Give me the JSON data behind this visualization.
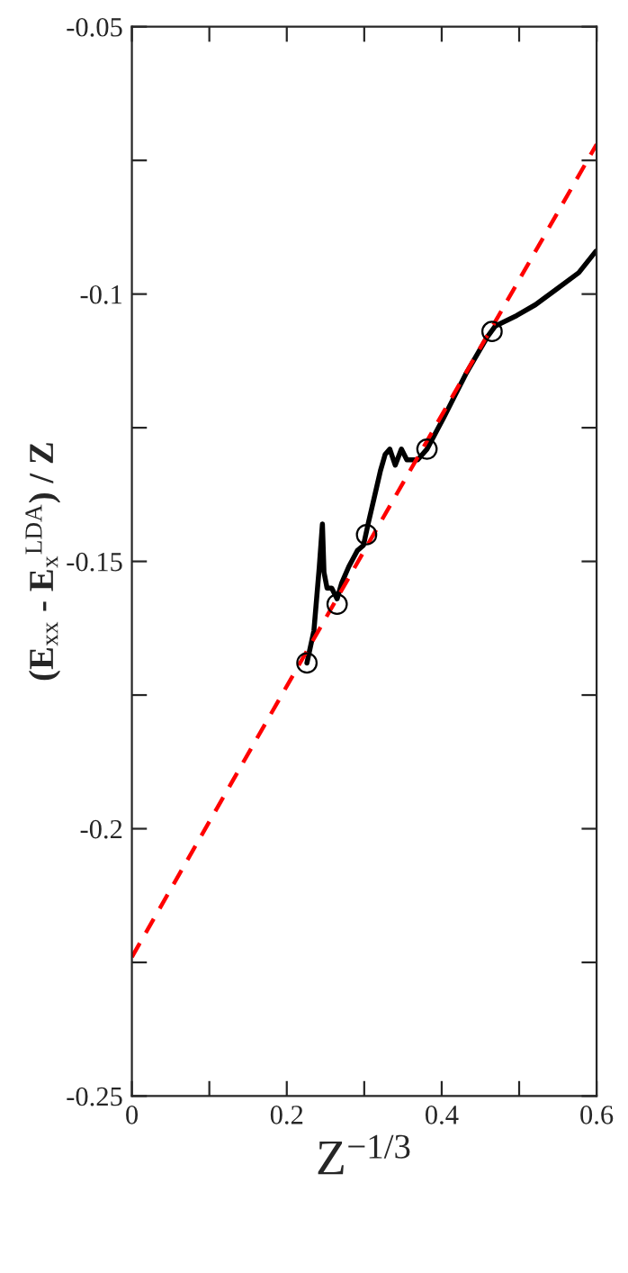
{
  "chart_data": {
    "type": "line",
    "xlabel": "Z$^{−1/3}$",
    "ylabel": "(E$_{xx}$ - E$_{x}$$^{LDA}$) / Z",
    "xlim": [
      0,
      0.6
    ],
    "ylim": [
      -0.25,
      -0.05
    ],
    "xticks": [
      0,
      {
        "value": 0.1,
        "label": null
      },
      0.2,
      {
        "value": 0.3,
        "label": null
      },
      0.4,
      {
        "value": 0.5,
        "label": null
      },
      0.6
    ],
    "yticks": [
      {
        "value": -0.25,
        "label": "-0.25"
      },
      {
        "value": -0.225,
        "label": null
      },
      {
        "value": -0.2,
        "label": "-0.2"
      },
      {
        "value": -0.175,
        "label": null
      },
      {
        "value": -0.15,
        "label": "-0.15"
      },
      {
        "value": -0.125,
        "label": null
      },
      {
        "value": -0.1,
        "label": "-0.1"
      },
      {
        "value": -0.075,
        "label": null
      },
      {
        "value": -0.05,
        "label": "-0.05"
      }
    ],
    "grid": false,
    "legend": false,
    "series": [
      {
        "color": "#000000",
        "marker": "none",
        "line_style": "solid",
        "x": [
          0.226,
          0.235,
          0.242,
          0.246,
          0.248,
          0.252,
          0.258,
          0.265,
          0.271,
          0.28,
          0.291,
          0.299,
          0.305,
          0.313,
          0.321,
          0.327,
          0.333,
          0.34,
          0.348,
          0.355,
          0.369,
          0.381,
          0.403,
          0.431,
          0.459,
          0.469,
          0.497,
          0.521,
          0.549,
          0.577,
          0.599
        ],
        "values": [
          -0.169,
          -0.163,
          -0.151,
          -0.143,
          -0.152,
          -0.155,
          -0.155,
          -0.157,
          -0.154,
          -0.151,
          -0.148,
          -0.147,
          -0.143,
          -0.138,
          -0.133,
          -0.13,
          -0.129,
          -0.132,
          -0.129,
          -0.131,
          -0.131,
          -0.129,
          -0.123,
          -0.115,
          -0.108,
          -0.106,
          -0.104,
          -0.102,
          -0.099,
          -0.096,
          -0.092
        ]
      },
      {
        "type": "scatter",
        "color": "#000000",
        "marker": "circle",
        "x": [
          0.226,
          0.265,
          0.303,
          0.381,
          0.465
        ],
        "values": [
          -0.169,
          -0.158,
          -0.145,
          -0.129,
          -0.107
        ]
      },
      {
        "type": "line",
        "color": "#ff0000",
        "marker": "none",
        "line_style": "dashed",
        "x": [
          0,
          0.6
        ],
        "values": [
          -0.224,
          -0.072
        ]
      }
    ]
  }
}
